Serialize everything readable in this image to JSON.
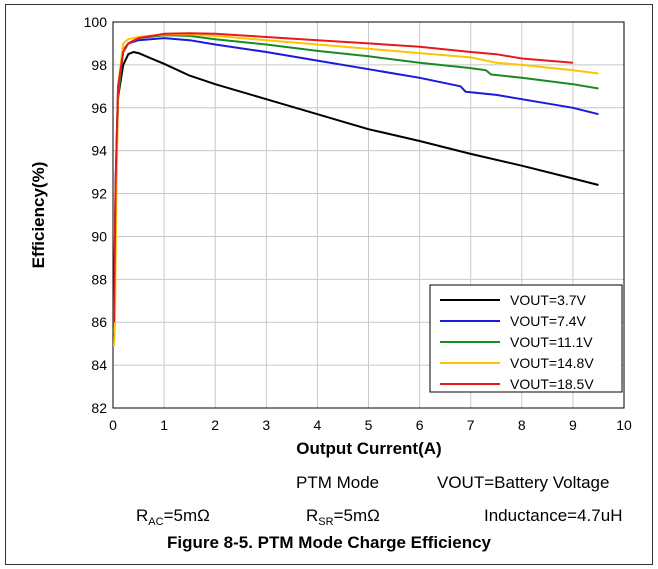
{
  "chart_data": {
    "type": "line",
    "xlabel": "Output Current(A)",
    "ylabel": "Efficiency(%)",
    "xlim": [
      0,
      10
    ],
    "ylim": [
      82,
      100
    ],
    "xticks": [
      "0",
      "1",
      "2",
      "3",
      "4",
      "5",
      "6",
      "7",
      "8",
      "9",
      "10"
    ],
    "yticks": [
      "82",
      "84",
      "86",
      "88",
      "90",
      "92",
      "94",
      "96",
      "98",
      "100"
    ],
    "grid": true,
    "legend_position": "bottom-right",
    "series": [
      {
        "name": "VOUT=3.7V",
        "color": "#000000",
        "points": [
          [
            0.02,
            85
          ],
          [
            0.05,
            92
          ],
          [
            0.1,
            96.5
          ],
          [
            0.2,
            98
          ],
          [
            0.3,
            98.5
          ],
          [
            0.4,
            98.6
          ],
          [
            0.5,
            98.55
          ],
          [
            0.7,
            98.35
          ],
          [
            1.0,
            98.05
          ],
          [
            1.5,
            97.5
          ],
          [
            2.0,
            97.1
          ],
          [
            3.0,
            96.4
          ],
          [
            4.0,
            95.7
          ],
          [
            5.0,
            95.0
          ],
          [
            6.0,
            94.45
          ],
          [
            7.0,
            93.85
          ],
          [
            8.0,
            93.3
          ],
          [
            9.0,
            92.7
          ],
          [
            9.5,
            92.4
          ]
        ]
      },
      {
        "name": "VOUT=7.4V",
        "color": "#1a1adb",
        "points": [
          [
            0.02,
            86
          ],
          [
            0.05,
            92.5
          ],
          [
            0.1,
            97
          ],
          [
            0.2,
            98.6
          ],
          [
            0.3,
            99.0
          ],
          [
            0.5,
            99.15
          ],
          [
            1.0,
            99.25
          ],
          [
            1.5,
            99.15
          ],
          [
            2.0,
            98.95
          ],
          [
            3.0,
            98.6
          ],
          [
            4.0,
            98.2
          ],
          [
            5.0,
            97.8
          ],
          [
            6.0,
            97.4
          ],
          [
            6.8,
            97.0
          ],
          [
            6.9,
            96.75
          ],
          [
            7.5,
            96.6
          ],
          [
            8.0,
            96.4
          ],
          [
            9.0,
            96.0
          ],
          [
            9.5,
            95.7
          ]
        ]
      },
      {
        "name": "VOUT=11.1V",
        "color": "#188a26",
        "points": [
          [
            0.02,
            85.5
          ],
          [
            0.05,
            92
          ],
          [
            0.1,
            96.5
          ],
          [
            0.2,
            98.7
          ],
          [
            0.3,
            99.0
          ],
          [
            0.5,
            99.25
          ],
          [
            1.0,
            99.38
          ],
          [
            1.5,
            99.35
          ],
          [
            2.0,
            99.2
          ],
          [
            3.0,
            98.95
          ],
          [
            4.0,
            98.65
          ],
          [
            5.0,
            98.4
          ],
          [
            6.0,
            98.1
          ],
          [
            7.0,
            97.85
          ],
          [
            7.3,
            97.75
          ],
          [
            7.4,
            97.55
          ],
          [
            8.0,
            97.4
          ],
          [
            9.0,
            97.1
          ],
          [
            9.5,
            96.9
          ]
        ]
      },
      {
        "name": "VOUT=14.8V",
        "color": "#ffc400",
        "points": [
          [
            0.02,
            84.9
          ],
          [
            0.04,
            86
          ],
          [
            0.06,
            91
          ],
          [
            0.1,
            97
          ],
          [
            0.2,
            99.0
          ],
          [
            0.3,
            99.2
          ],
          [
            0.5,
            99.3
          ],
          [
            1.0,
            99.42
          ],
          [
            1.5,
            99.42
          ],
          [
            2.0,
            99.35
          ],
          [
            3.0,
            99.15
          ],
          [
            4.0,
            98.95
          ],
          [
            5.0,
            98.75
          ],
          [
            6.0,
            98.55
          ],
          [
            7.0,
            98.35
          ],
          [
            7.5,
            98.1
          ],
          [
            8.0,
            98.0
          ],
          [
            9.0,
            97.75
          ],
          [
            9.5,
            97.6
          ]
        ]
      },
      {
        "name": "VOUT=18.5V",
        "color": "#e8191c",
        "points": [
          [
            0.02,
            86
          ],
          [
            0.05,
            92.5
          ],
          [
            0.1,
            97
          ],
          [
            0.2,
            98.6
          ],
          [
            0.3,
            99.0
          ],
          [
            0.5,
            99.25
          ],
          [
            1.0,
            99.45
          ],
          [
            1.5,
            99.48
          ],
          [
            2.0,
            99.45
          ],
          [
            3.0,
            99.3
          ],
          [
            4.0,
            99.15
          ],
          [
            5.0,
            99.0
          ],
          [
            6.0,
            98.85
          ],
          [
            7.0,
            98.6
          ],
          [
            7.5,
            98.5
          ],
          [
            8.0,
            98.3
          ],
          [
            9.0,
            98.1
          ]
        ]
      }
    ]
  },
  "annotations": {
    "mode": "PTM Mode",
    "vout": "VOUT=Battery Voltage",
    "rac_prefix": "R",
    "rac_sub": "AC",
    "rac_suffix": "=5mΩ",
    "rsr_prefix": "R",
    "rsr_sub": "SR",
    "rsr_suffix": "=5mΩ",
    "inductance": "Inductance=4.7uH"
  },
  "caption": "Figure 8-5. PTM Mode Charge Efficiency"
}
